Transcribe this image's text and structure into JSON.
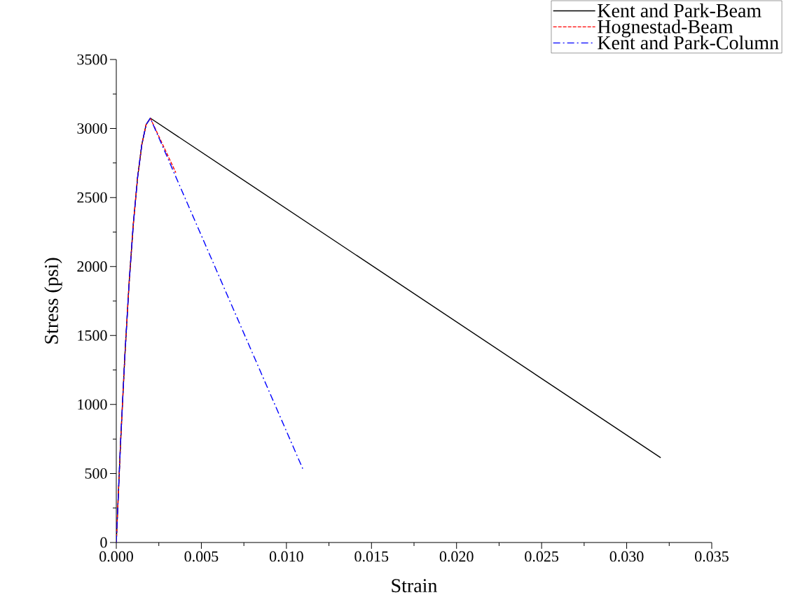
{
  "chart_data": {
    "type": "line",
    "xlabel": "Strain",
    "ylabel": "Stress (psi)",
    "xlim": [
      0,
      0.035
    ],
    "ylim": [
      0,
      3500
    ],
    "xticks": [
      {
        "value": 0,
        "label": "0.000"
      },
      {
        "value": 0.005,
        "label": "0.005"
      },
      {
        "value": 0.01,
        "label": "0.010"
      },
      {
        "value": 0.015,
        "label": "0.015"
      },
      {
        "value": 0.02,
        "label": "0.020"
      },
      {
        "value": 0.025,
        "label": "0.025"
      },
      {
        "value": 0.03,
        "label": "0.030"
      },
      {
        "value": 0.035,
        "label": "0.035"
      }
    ],
    "yticks": [
      0,
      500,
      1000,
      1500,
      2000,
      2500,
      3000,
      3500
    ],
    "grid": false,
    "legend": "top right",
    "series": [
      {
        "name": "Kent and Park-Beam",
        "color": "#000000",
        "line_style": "solid",
        "x": [
          0,
          0.00025,
          0.0005,
          0.00075,
          0.001,
          0.00125,
          0.0015,
          0.00175,
          0.002,
          0.032
        ],
        "values": [
          0,
          720,
          1345,
          1874,
          2306,
          2643,
          2883,
          3027,
          3075,
          614
        ]
      },
      {
        "name": "Hognestad-Beam",
        "color": "#ff0000",
        "line_style": "dashed",
        "x": [
          0,
          0.00025,
          0.0005,
          0.00075,
          0.001,
          0.00125,
          0.0015,
          0.00175,
          0.002,
          0.0035
        ],
        "values": [
          0,
          720,
          1345,
          1874,
          2306,
          2643,
          2883,
          3027,
          3075,
          2680
        ]
      },
      {
        "name": "Kent and Park-Column",
        "color": "#0000ff",
        "line_style": "dashdot",
        "x": [
          0,
          0.00025,
          0.0005,
          0.00075,
          0.001,
          0.00125,
          0.0015,
          0.00175,
          0.002,
          0.011
        ],
        "values": [
          0,
          720,
          1345,
          1874,
          2306,
          2643,
          2883,
          3027,
          3075,
          523
        ]
      }
    ]
  }
}
